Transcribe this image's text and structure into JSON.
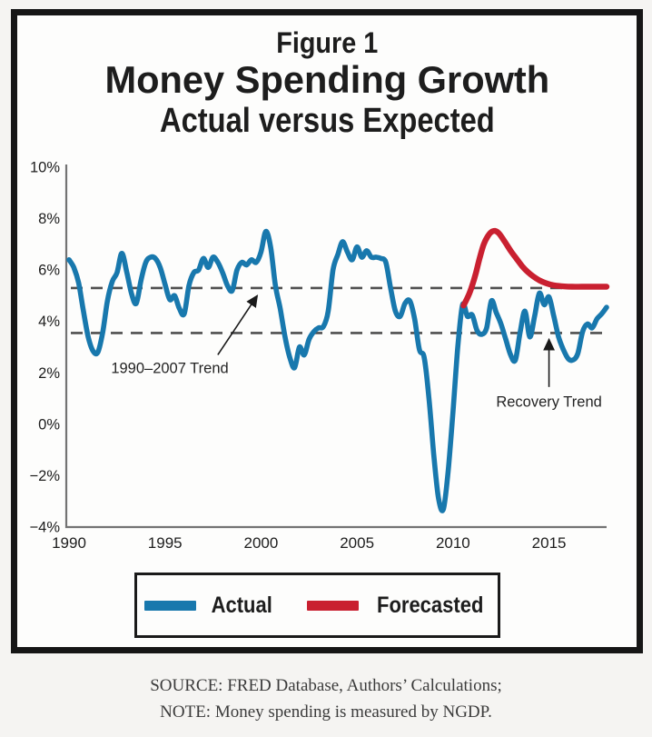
{
  "page": {
    "background": "#f5f4f2",
    "frame_color": "#161616"
  },
  "figure": {
    "figure_label": "Figure 1",
    "title": "Money Spending Growth",
    "subtitle": "Actual versus Expected"
  },
  "footer": {
    "source_line": "SOURCE: FRED Database, Authors’ Calculations;",
    "note_line": "NOTE: Money spending is measured by NGDP."
  },
  "chart_data": {
    "type": "line",
    "title": "Figure 1",
    "subtitle": "Money Spending Growth",
    "subsubtitle": "Actual versus Expected",
    "xlabel": "",
    "ylabel": "",
    "grid": false,
    "legend_position": "bottom",
    "xlim": [
      1990,
      2018
    ],
    "ylim": [
      -4,
      10
    ],
    "x_ticks": [
      {
        "v": 1990,
        "label": "1990"
      },
      {
        "v": 1995,
        "label": "1995"
      },
      {
        "v": 2000,
        "label": "2000"
      },
      {
        "v": 2005,
        "label": "2005"
      },
      {
        "v": 2010,
        "label": "2010"
      },
      {
        "v": 2015,
        "label": "2015"
      }
    ],
    "y_ticks": [
      {
        "v": 10,
        "label": "10%"
      },
      {
        "v": 8,
        "label": "8%"
      },
      {
        "v": 6,
        "label": "6%"
      },
      {
        "v": 4,
        "label": "4%"
      },
      {
        "v": 2,
        "label": "2%"
      },
      {
        "v": 0,
        "label": "0%"
      },
      {
        "v": -2,
        "label": "−2%"
      },
      {
        "v": -4,
        "label": "−4%"
      }
    ],
    "colors": {
      "dashed_trend": "#4f4f4f",
      "axis": "#737373",
      "text": "#1d1d1d",
      "annotation": "#242424"
    },
    "reference_lines": [
      {
        "name": "1990-2007 trend",
        "value": 5.3
      },
      {
        "name": "recovery trend",
        "value": 3.55
      }
    ],
    "annotations": [
      {
        "text": "1990–2007 Trend",
        "text_x": 1995.25,
        "text_y": 2.2,
        "arrow": {
          "from": [
            1997.75,
            2.7
          ],
          "to": [
            1999.8,
            5.0
          ]
        }
      },
      {
        "text": "Recovery Trend",
        "text_x": 2015.0,
        "text_y": 0.9,
        "arrow": {
          "from": [
            2015.0,
            1.45
          ],
          "to": [
            2015.0,
            3.3
          ]
        }
      }
    ],
    "series": [
      {
        "name": "Actual",
        "color": "#1878ad",
        "points": [
          [
            1990.0,
            6.4
          ],
          [
            1990.25,
            6.1
          ],
          [
            1990.5,
            5.5
          ],
          [
            1990.75,
            4.4
          ],
          [
            1991.0,
            3.4
          ],
          [
            1991.25,
            2.85
          ],
          [
            1991.5,
            2.8
          ],
          [
            1991.75,
            3.55
          ],
          [
            1992.0,
            4.8
          ],
          [
            1992.25,
            5.55
          ],
          [
            1992.5,
            5.9
          ],
          [
            1992.75,
            6.65
          ],
          [
            1993.0,
            5.95
          ],
          [
            1993.25,
            5.1
          ],
          [
            1993.5,
            4.7
          ],
          [
            1993.75,
            5.6
          ],
          [
            1994.0,
            6.3
          ],
          [
            1994.25,
            6.5
          ],
          [
            1994.5,
            6.45
          ],
          [
            1994.75,
            6.1
          ],
          [
            1995.0,
            5.45
          ],
          [
            1995.25,
            4.85
          ],
          [
            1995.5,
            5.0
          ],
          [
            1995.75,
            4.5
          ],
          [
            1996.0,
            4.3
          ],
          [
            1996.25,
            5.4
          ],
          [
            1996.5,
            5.9
          ],
          [
            1996.75,
            6.0
          ],
          [
            1997.0,
            6.45
          ],
          [
            1997.25,
            6.1
          ],
          [
            1997.5,
            6.5
          ],
          [
            1997.75,
            6.3
          ],
          [
            1998.0,
            5.9
          ],
          [
            1998.25,
            5.4
          ],
          [
            1998.5,
            5.2
          ],
          [
            1998.75,
            6.0
          ],
          [
            1999.0,
            6.3
          ],
          [
            1999.25,
            6.2
          ],
          [
            1999.5,
            6.4
          ],
          [
            1999.75,
            6.3
          ],
          [
            2000.0,
            6.7
          ],
          [
            2000.25,
            7.5
          ],
          [
            2000.5,
            6.9
          ],
          [
            2000.75,
            5.4
          ],
          [
            2001.0,
            4.5
          ],
          [
            2001.25,
            3.4
          ],
          [
            2001.5,
            2.6
          ],
          [
            2001.75,
            2.2
          ],
          [
            2002.0,
            3.0
          ],
          [
            2002.25,
            2.7
          ],
          [
            2002.5,
            3.3
          ],
          [
            2002.75,
            3.6
          ],
          [
            2003.0,
            3.75
          ],
          [
            2003.25,
            3.8
          ],
          [
            2003.5,
            4.4
          ],
          [
            2003.75,
            6.0
          ],
          [
            2004.0,
            6.6
          ],
          [
            2004.25,
            7.1
          ],
          [
            2004.5,
            6.7
          ],
          [
            2004.75,
            6.4
          ],
          [
            2005.0,
            6.9
          ],
          [
            2005.25,
            6.5
          ],
          [
            2005.5,
            6.75
          ],
          [
            2005.75,
            6.5
          ],
          [
            2006.0,
            6.5
          ],
          [
            2006.25,
            6.45
          ],
          [
            2006.5,
            6.3
          ],
          [
            2006.75,
            5.3
          ],
          [
            2007.0,
            4.4
          ],
          [
            2007.25,
            4.2
          ],
          [
            2007.5,
            4.7
          ],
          [
            2007.75,
            4.8
          ],
          [
            2008.0,
            4.1
          ],
          [
            2008.25,
            2.9
          ],
          [
            2008.5,
            2.6
          ],
          [
            2008.75,
            1.0
          ],
          [
            2009.0,
            -1.2
          ],
          [
            2009.25,
            -2.9
          ],
          [
            2009.5,
            -3.3
          ],
          [
            2009.75,
            -1.8
          ],
          [
            2010.0,
            0.5
          ],
          [
            2010.25,
            3.0
          ],
          [
            2010.5,
            4.65
          ],
          [
            2010.75,
            4.2
          ],
          [
            2011.0,
            4.25
          ],
          [
            2011.25,
            3.65
          ],
          [
            2011.5,
            3.5
          ],
          [
            2011.75,
            3.75
          ],
          [
            2012.0,
            4.8
          ],
          [
            2012.25,
            4.35
          ],
          [
            2012.5,
            3.9
          ],
          [
            2012.75,
            3.3
          ],
          [
            2013.0,
            2.7
          ],
          [
            2013.25,
            2.5
          ],
          [
            2013.5,
            3.6
          ],
          [
            2013.75,
            4.4
          ],
          [
            2014.0,
            3.4
          ],
          [
            2014.25,
            4.2
          ],
          [
            2014.5,
            5.1
          ],
          [
            2014.75,
            4.65
          ],
          [
            2015.0,
            4.95
          ],
          [
            2015.25,
            4.2
          ],
          [
            2015.5,
            3.4
          ],
          [
            2015.75,
            2.9
          ],
          [
            2016.0,
            2.55
          ],
          [
            2016.25,
            2.5
          ],
          [
            2016.5,
            2.75
          ],
          [
            2016.75,
            3.6
          ],
          [
            2017.0,
            3.9
          ],
          [
            2017.25,
            3.75
          ],
          [
            2017.5,
            4.1
          ],
          [
            2017.75,
            4.3
          ],
          [
            2018.0,
            4.55
          ]
        ]
      },
      {
        "name": "Forecasted",
        "color": "#c92030",
        "points": [
          [
            2010.55,
            4.62
          ],
          [
            2010.8,
            5.0
          ],
          [
            2011.0,
            5.4
          ],
          [
            2011.2,
            5.9
          ],
          [
            2011.4,
            6.5
          ],
          [
            2011.6,
            7.0
          ],
          [
            2011.8,
            7.3
          ],
          [
            2012.0,
            7.48
          ],
          [
            2012.2,
            7.52
          ],
          [
            2012.4,
            7.42
          ],
          [
            2012.7,
            7.1
          ],
          [
            2013.0,
            6.75
          ],
          [
            2013.3,
            6.45
          ],
          [
            2013.6,
            6.15
          ],
          [
            2013.9,
            5.92
          ],
          [
            2014.2,
            5.74
          ],
          [
            2014.5,
            5.6
          ],
          [
            2014.8,
            5.5
          ],
          [
            2015.1,
            5.43
          ],
          [
            2015.4,
            5.39
          ],
          [
            2015.8,
            5.36
          ],
          [
            2016.2,
            5.35
          ],
          [
            2016.7,
            5.35
          ],
          [
            2017.2,
            5.35
          ],
          [
            2017.6,
            5.35
          ],
          [
            2018.0,
            5.35
          ]
        ]
      }
    ]
  }
}
